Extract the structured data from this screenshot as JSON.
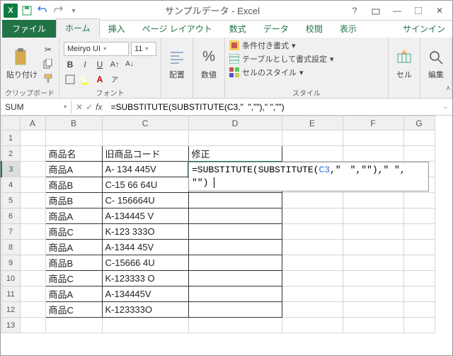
{
  "title": "サンプルデータ - Excel",
  "tabs": {
    "file": "ファイル",
    "home": "ホーム",
    "insert": "挿入",
    "pagelayout": "ページ レイアウト",
    "formulas": "数式",
    "data": "データ",
    "review": "校閲",
    "view": "表示"
  },
  "signin": "サインイン",
  "ribbon": {
    "clipboard": {
      "paste": "貼り付け",
      "label": "クリップボード"
    },
    "font": {
      "name": "Meiryo UI",
      "size": "11",
      "label": "フォント"
    },
    "align": {
      "btn": "配置"
    },
    "number": {
      "btn": "数値"
    },
    "styles": {
      "cond": "条件付き書式",
      "table": "テーブルとして書式設定",
      "cellst": "セルのスタイル",
      "label": "スタイル"
    },
    "cells": {
      "btn": "セル"
    },
    "edit": {
      "btn": "編集"
    }
  },
  "namebox": "SUM",
  "formula": "=SUBSTITUTE(SUBSTITUTE(C3,\"  \",\"\"),\" \",\"\")",
  "overlay": {
    "pre": "=SUBSTITUTE(SUBSTITUTE(",
    "ref": "C3",
    "post1": ",\"　\",\"\"),\" \",",
    "post2": "\"\")"
  },
  "columns": [
    "A",
    "B",
    "C",
    "D",
    "E",
    "F",
    "G"
  ],
  "col_widths": {
    "A": 36,
    "B": 80,
    "C": 122,
    "D": 132,
    "E": 86,
    "F": 86,
    "G": 44
  },
  "rows": [
    {
      "r": 1,
      "b": "",
      "c": "",
      "d": ""
    },
    {
      "r": 2,
      "b": "商品名",
      "c": "旧商品コード",
      "d": "修正"
    },
    {
      "r": 3,
      "b": "商品A",
      "c": "A-  134  445V",
      "d": ""
    },
    {
      "r": 4,
      "b": "商品B",
      "c": "C-15 66 64U",
      "d": ""
    },
    {
      "r": 5,
      "b": "商品B",
      "c": "C- 156664U",
      "d": ""
    },
    {
      "r": 6,
      "b": "商品A",
      "c": "A-134445 V",
      "d": ""
    },
    {
      "r": 7,
      "b": "商品C",
      "c": "K-123 333O",
      "d": ""
    },
    {
      "r": 8,
      "b": "商品A",
      "c": "A-1344  45V",
      "d": ""
    },
    {
      "r": 9,
      "b": "商品B",
      "c": "C-15666  4U",
      "d": ""
    },
    {
      "r": 10,
      "b": "商品C",
      "c": "K-123333  O",
      "d": ""
    },
    {
      "r": 11,
      "b": "商品A",
      "c": "A-134445V",
      "d": ""
    },
    {
      "r": 12,
      "b": "商品C",
      "c": " K-123333O",
      "d": ""
    },
    {
      "r": 13,
      "b": "",
      "c": "",
      "d": ""
    }
  ],
  "active_row": 3,
  "table_rows": [
    2,
    3,
    4,
    5,
    6,
    7,
    8,
    9,
    10,
    11,
    12
  ],
  "colors": {
    "excel_green": "#217346",
    "ref_blue": "#2a6fdb",
    "header_bg": "#f0f0f0"
  }
}
